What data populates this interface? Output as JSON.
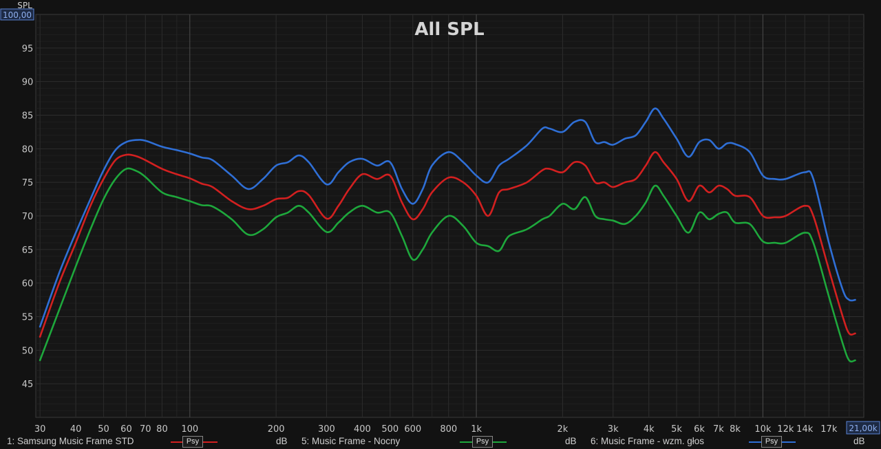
{
  "chart_data": {
    "type": "line",
    "title": "All SPL",
    "ylabel": "SPL",
    "xlabel": "",
    "x_scale": "log",
    "xlim": [
      29,
      22500
    ],
    "ylim": [
      40,
      100
    ],
    "y_top_label": "100,00",
    "y_ticks": [
      45,
      50,
      55,
      60,
      65,
      70,
      75,
      80,
      85,
      90,
      95
    ],
    "x_ticks": [
      {
        "v": 30,
        "label": "30"
      },
      {
        "v": 40,
        "label": "40"
      },
      {
        "v": 50,
        "label": "50"
      },
      {
        "v": 60,
        "label": "60"
      },
      {
        "v": 70,
        "label": "70"
      },
      {
        "v": 80,
        "label": "80"
      },
      {
        "v": 100,
        "label": "100"
      },
      {
        "v": 200,
        "label": "200"
      },
      {
        "v": 300,
        "label": "300"
      },
      {
        "v": 400,
        "label": "400"
      },
      {
        "v": 500,
        "label": "500"
      },
      {
        "v": 600,
        "label": "600"
      },
      {
        "v": 800,
        "label": "800"
      },
      {
        "v": 1000,
        "label": "1k"
      },
      {
        "v": 2000,
        "label": "2k"
      },
      {
        "v": 3000,
        "label": "3k"
      },
      {
        "v": 4000,
        "label": "4k"
      },
      {
        "v": 5000,
        "label": "5k"
      },
      {
        "v": 6000,
        "label": "6k"
      },
      {
        "v": 7000,
        "label": "7k"
      },
      {
        "v": 8000,
        "label": "8k"
      },
      {
        "v": 10000,
        "label": "10k"
      },
      {
        "v": 12000,
        "label": "12k"
      },
      {
        "v": 14000,
        "label": "14k"
      },
      {
        "v": 17000,
        "label": "17k"
      }
    ],
    "x_end_label": "21,00k",
    "grid": true,
    "series": [
      {
        "name": "1: Samsung Music Frame STD",
        "color": "#d32020",
        "x": [
          30,
          35,
          40,
          45,
          50,
          55,
          60,
          65,
          70,
          80,
          90,
          100,
          110,
          120,
          140,
          160,
          180,
          200,
          220,
          240,
          260,
          300,
          330,
          360,
          400,
          450,
          500,
          550,
          600,
          650,
          700,
          800,
          900,
          1000,
          1100,
          1200,
          1300,
          1500,
          1700,
          1800,
          2000,
          2200,
          2400,
          2600,
          2800,
          3000,
          3300,
          3600,
          3900,
          4200,
          4500,
          5000,
          5500,
          6000,
          6500,
          7000,
          7500,
          8000,
          9000,
          10000,
          11000,
          12000,
          14000,
          15000,
          17000,
          19000,
          20000,
          21000
        ],
        "values": [
          52,
          60,
          66,
          71.5,
          75.5,
          78.3,
          79.1,
          78.9,
          78.3,
          77,
          76.2,
          75.6,
          74.8,
          74.3,
          72.2,
          71,
          71.5,
          72.5,
          72.7,
          73.7,
          73.1,
          69.6,
          71.5,
          74,
          76.2,
          75.5,
          76,
          72,
          69.5,
          71,
          73.5,
          75.7,
          75,
          73,
          70,
          73.5,
          74,
          75,
          76.8,
          77,
          76.5,
          78,
          77.5,
          75,
          75,
          74.3,
          75,
          75.5,
          77.5,
          79.5,
          78,
          75.5,
          72.2,
          74.5,
          73.5,
          74.5,
          74,
          73,
          72.8,
          70,
          69.8,
          70,
          71.5,
          70,
          62,
          55,
          52.5,
          52.5
        ]
      },
      {
        "name": "5: Music Frame - Nocny",
        "color": "#1ea83c",
        "x": [
          30,
          35,
          40,
          45,
          50,
          55,
          60,
          65,
          70,
          80,
          90,
          100,
          110,
          120,
          140,
          160,
          180,
          200,
          220,
          240,
          260,
          300,
          330,
          360,
          400,
          450,
          500,
          550,
          600,
          650,
          700,
          800,
          900,
          1000,
          1100,
          1200,
          1300,
          1500,
          1700,
          1800,
          2000,
          2200,
          2400,
          2600,
          2800,
          3000,
          3300,
          3600,
          3900,
          4200,
          4500,
          5000,
          5500,
          6000,
          6500,
          7000,
          7500,
          8000,
          9000,
          10000,
          11000,
          12000,
          14000,
          15000,
          17000,
          19000,
          20000,
          21000
        ],
        "values": [
          48.5,
          56,
          62.5,
          68,
          72.5,
          75.5,
          77,
          76.7,
          75.8,
          73.5,
          72.8,
          72.2,
          71.6,
          71.4,
          69.5,
          67.2,
          68,
          69.8,
          70.5,
          71.5,
          70.5,
          67.6,
          69,
          70.5,
          71.5,
          70.5,
          70.5,
          67,
          63.5,
          65,
          67.5,
          70,
          68.5,
          66,
          65.5,
          64.8,
          67,
          68,
          69.5,
          70,
          71.8,
          71,
          72.8,
          70,
          69.5,
          69.3,
          68.8,
          70,
          72,
          74.5,
          73,
          70,
          67.5,
          70.5,
          69.5,
          70.3,
          70.5,
          69,
          68.8,
          66.2,
          66,
          66,
          67.5,
          66,
          58,
          51,
          48.5,
          48.5
        ]
      },
      {
        "name": "6: Music Frame - wzm. głos",
        "color": "#2f6fd6",
        "x": [
          30,
          35,
          40,
          45,
          50,
          55,
          60,
          65,
          70,
          80,
          90,
          100,
          110,
          120,
          140,
          160,
          180,
          200,
          220,
          240,
          260,
          300,
          330,
          360,
          400,
          450,
          500,
          550,
          600,
          650,
          700,
          800,
          900,
          1000,
          1100,
          1200,
          1300,
          1500,
          1700,
          1800,
          2000,
          2200,
          2400,
          2600,
          2800,
          3000,
          3300,
          3600,
          3900,
          4200,
          4500,
          5000,
          5500,
          6000,
          6500,
          7000,
          7500,
          8000,
          9000,
          10000,
          11000,
          12000,
          14000,
          15000,
          17000,
          19000,
          20000,
          21000
        ],
        "values": [
          53.5,
          61.5,
          67.5,
          72.5,
          76.8,
          79.8,
          81,
          81.3,
          81.2,
          80.3,
          79.8,
          79.3,
          78.7,
          78.3,
          76,
          74,
          75.5,
          77.5,
          78,
          79,
          78,
          74.7,
          76.5,
          78,
          78.5,
          77.5,
          78,
          74,
          71.8,
          74,
          77.5,
          79.5,
          78,
          76,
          75,
          77.5,
          78.5,
          80.5,
          83,
          83,
          82.5,
          84,
          84,
          81,
          81,
          80.6,
          81.5,
          82,
          84,
          86,
          84.5,
          81.5,
          78.8,
          81,
          81.3,
          80,
          80.8,
          80.7,
          79.5,
          76,
          75.5,
          75.5,
          76.5,
          75.5,
          66,
          59,
          57.5,
          57.5
        ]
      }
    ]
  },
  "legend": [
    {
      "name": "1: Samsung Music Frame STD",
      "psy": "Psy",
      "unit": "dB",
      "color": "#d32020"
    },
    {
      "name": "5: Music Frame - Nocny",
      "psy": "Psy",
      "unit": "dB",
      "color": "#1ea83c"
    },
    {
      "name": "6: Music Frame - wzm. głos",
      "psy": "Psy",
      "unit": "dB",
      "color": "#2f6fd6"
    }
  ]
}
